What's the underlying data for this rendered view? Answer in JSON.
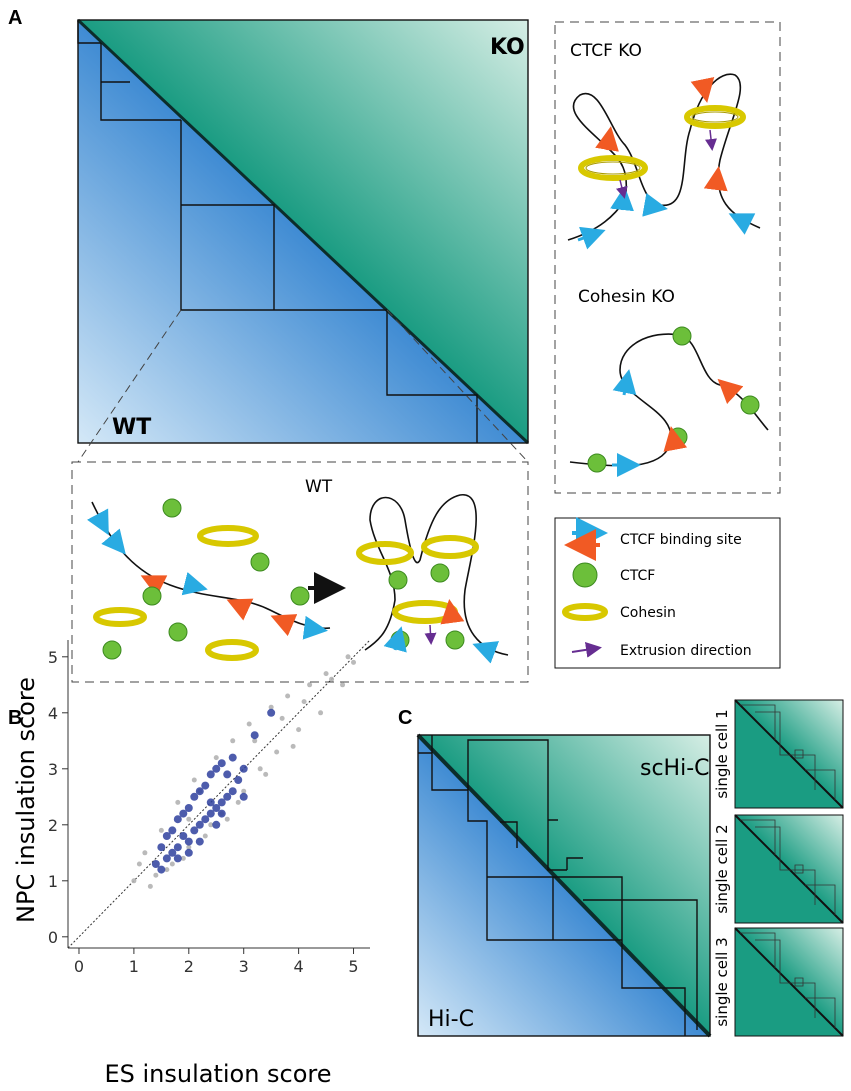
{
  "panel_a": {
    "label": "A",
    "heatmap": {
      "ko_label": "KO",
      "wt_label": "WT"
    },
    "ctcf_ko": {
      "title": "CTCF KO"
    },
    "cohesin_ko": {
      "title": "Cohesin KO"
    },
    "wt_model": {
      "title": "WT"
    },
    "legend": {
      "items": [
        "CTCF binding site",
        "CTCF",
        "Cohesin",
        "Extrusion direction"
      ]
    }
  },
  "panel_b": {
    "label": "B",
    "chart_data": {
      "type": "scatter",
      "xlabel": "ES insulation score",
      "ylabel": "NPC insulation score",
      "xlim": [
        -0.2,
        5.3
      ],
      "ylim": [
        -0.2,
        5.3
      ],
      "xticks": [
        0,
        1,
        2,
        3,
        4,
        5
      ],
      "yticks": [
        0,
        1,
        2,
        3,
        4,
        5
      ],
      "series": [
        {
          "color": "#b3b3b3",
          "x": [
            1.0,
            1.2,
            1.4,
            1.5,
            1.7,
            1.8,
            2.0,
            2.1,
            2.3,
            2.5,
            2.6,
            2.8,
            3.0,
            3.1,
            3.3,
            3.5,
            3.6,
            3.8,
            4.0,
            4.2,
            4.4,
            4.6,
            4.8,
            5.0,
            1.3,
            1.9,
            2.4,
            2.9,
            3.4,
            3.9,
            1.1,
            1.6,
            2.2,
            2.7,
            3.2,
            3.7,
            4.1,
            4.5,
            4.9,
            2.0
          ],
          "values": [
            1.0,
            1.5,
            1.1,
            1.9,
            1.3,
            2.4,
            1.6,
            2.8,
            1.8,
            3.2,
            2.2,
            3.5,
            2.6,
            3.8,
            3.0,
            4.1,
            3.3,
            4.3,
            3.7,
            4.5,
            4.0,
            4.6,
            4.5,
            4.9,
            0.9,
            1.4,
            2.0,
            2.4,
            2.9,
            3.4,
            1.3,
            1.2,
            2.6,
            2.1,
            3.5,
            3.9,
            4.2,
            4.7,
            5.0,
            2.1
          ]
        },
        {
          "color": "#2e3f9e",
          "x": [
            1.4,
            1.5,
            1.6,
            1.6,
            1.7,
            1.7,
            1.8,
            1.8,
            1.9,
            1.9,
            2.0,
            2.0,
            2.1,
            2.1,
            2.2,
            2.2,
            2.3,
            2.3,
            2.4,
            2.4,
            2.5,
            2.5,
            2.6,
            2.6,
            2.7,
            2.7,
            2.8,
            2.8,
            2.9,
            3.0,
            1.5,
            2.0,
            2.5,
            3.2,
            3.5,
            1.8,
            2.2,
            2.6,
            3.0,
            2.4
          ],
          "values": [
            1.3,
            1.6,
            1.4,
            1.8,
            1.5,
            1.9,
            1.6,
            2.1,
            1.8,
            2.2,
            1.7,
            2.3,
            1.9,
            2.5,
            2.0,
            2.6,
            2.1,
            2.7,
            2.2,
            2.9,
            2.3,
            3.0,
            2.4,
            3.1,
            2.5,
            2.9,
            2.6,
            3.2,
            2.8,
            3.0,
            1.2,
            1.5,
            2.0,
            3.6,
            4.0,
            1.4,
            1.7,
            2.2,
            2.5,
            2.4
          ]
        }
      ]
    }
  },
  "panel_c": {
    "label": "C",
    "heatmap": {
      "sc_label": "scHi-C",
      "bulk_label": "Hi-C"
    },
    "single_cells": [
      "single cell 1",
      "single cell 2",
      "single cell 3"
    ]
  }
}
